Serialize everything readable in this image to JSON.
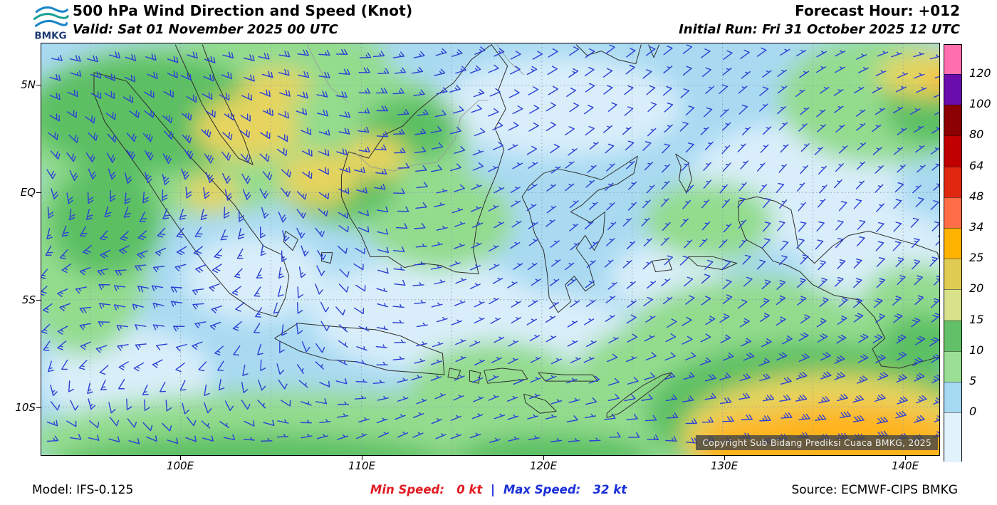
{
  "header": {
    "logo_text": "BMKG",
    "title": "500 hPa Wind Direction and Speed (Knot)",
    "valid_line": "Valid: Sat 01 November 2025 00 UTC",
    "forecast_hour": "Forecast Hour: +012",
    "initial_run": "Initial Run: Fri 31 October 2025 12 UTC"
  },
  "map": {
    "lat_labels": [
      "5N",
      "EQ",
      "5S",
      "10S"
    ],
    "lon_labels": [
      "100E",
      "110E",
      "120E",
      "130E",
      "140E"
    ],
    "copyright": "Copyright Sub Bidang Prediksi Cuaca BMKG, 2025",
    "barb_color": "#2B3FD6",
    "sea_base_color": "#A9DAF2",
    "coast_color": "#2F2F2F",
    "border_line_color": "#999999",
    "grid_color": "#8899AA",
    "shading_palette": {
      "pale_blue": "#D9EEFA",
      "light_blue": "#A9DAF2",
      "light_green": "#93DC8E",
      "green": "#5CC063",
      "khaki": "#E6D45E",
      "orange": "#FFB41E"
    }
  },
  "legend": {
    "labels": [
      "120",
      "100",
      "80",
      "64",
      "48",
      "34",
      "25",
      "20",
      "15",
      "10",
      "5",
      "0"
    ],
    "colors": [
      "#FF6FAE",
      "#6A0DAD",
      "#8B0000",
      "#C00000",
      "#E02810",
      "#FF6E47",
      "#FFB300",
      "#E0CC52",
      "#D9E28A",
      "#62C168",
      "#9ADF93",
      "#A6D9F2",
      "#E2F2FB"
    ]
  },
  "footer": {
    "model": "Model: IFS-0.125",
    "min_speed_label": "Min Speed:",
    "min_speed_value": "0 kt",
    "separator": "|",
    "max_speed_label": "Max Speed:",
    "max_speed_value": "32 kt",
    "source": "Source: ECMWF-CIPS BMKG"
  }
}
